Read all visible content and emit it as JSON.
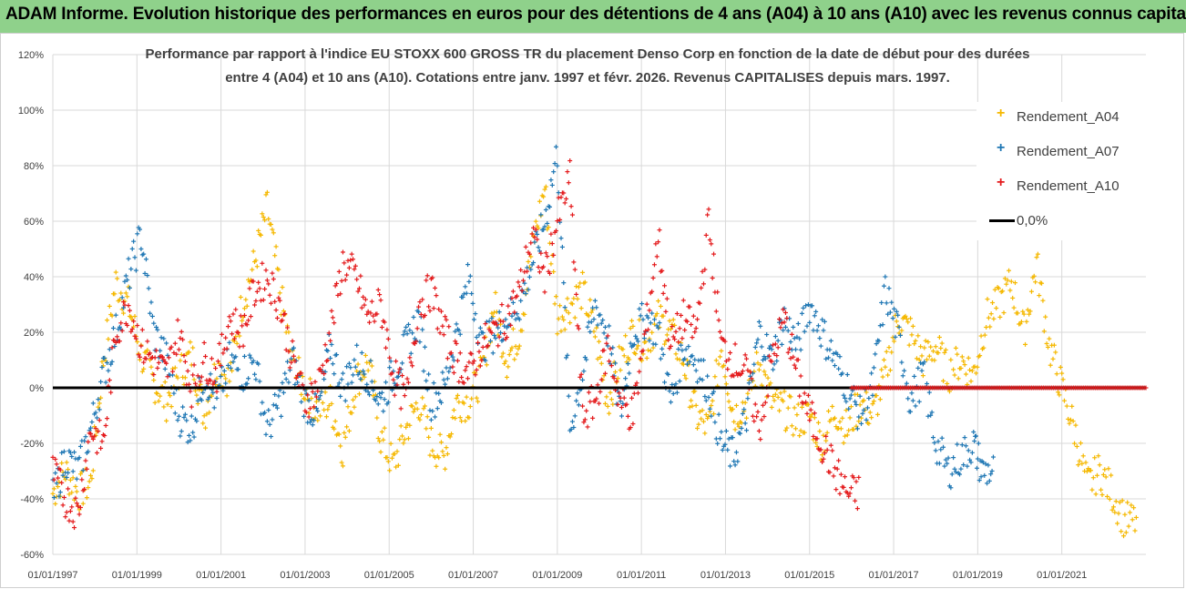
{
  "banner": {
    "title": "ADAM Informe. Evolution historique des performances en euros pour des détentions de 4 ans (A04) à 10 ans (A10) avec les revenus connus capitalisés"
  },
  "colors": {
    "banner_bg": "#8fd18b",
    "A04": "#f5b800",
    "A07": "#1f77b4",
    "A10": "#e41a1c",
    "zero": "#000000"
  },
  "chart_data": {
    "type": "scatter",
    "title_line1": "Performance par rapport à l'indice EU STOXX 600 GROSS TR  du placement Denso Corp en fonction de la date de début pour des durées",
    "title_line2": "entre 4 (A04) et 10 ans (A10). Cotations entre janv. 1997 et févr. 2026. Revenus CAPITALISES depuis mars. 1997.",
    "xlabel": "",
    "ylabel": "",
    "ylim": [
      -60,
      120
    ],
    "xlim": [
      1997.0,
      2023.0
    ],
    "y_ticks": [
      "-60%",
      "-40%",
      "-20%",
      "0%",
      "20%",
      "40%",
      "60%",
      "80%",
      "100%",
      "120%"
    ],
    "y_tick_values": [
      -60,
      -40,
      -20,
      0,
      20,
      40,
      60,
      80,
      100,
      120
    ],
    "x_ticks": [
      "01/01/1997",
      "01/01/1999",
      "01/01/2001",
      "01/01/2003",
      "01/01/2005",
      "01/01/2007",
      "01/01/2009",
      "01/01/2011",
      "01/01/2013",
      "01/01/2015",
      "01/01/2017",
      "01/01/2019",
      "01/01/2021"
    ],
    "x_tick_values": [
      1997,
      1999,
      2001,
      2003,
      2005,
      2007,
      2009,
      2011,
      2013,
      2015,
      2017,
      2019,
      2021
    ],
    "legend": [
      "Rendement_A04",
      "Rendement_A07",
      "Rendement_A10",
      "0,0%"
    ],
    "series": [
      {
        "name": "Rendement_A04",
        "color": "#f5b800",
        "x": [
          1997.0,
          1997.3,
          1997.6,
          1997.9,
          1998.2,
          1998.5,
          1998.8,
          1999.1,
          1999.4,
          1999.7,
          2000.0,
          2000.3,
          2000.6,
          2000.9,
          2001.2,
          2001.5,
          2001.8,
          2002.1,
          2002.4,
          2002.7,
          2003.0,
          2003.3,
          2003.6,
          2003.9,
          2004.2,
          2004.5,
          2004.8,
          2005.1,
          2005.4,
          2005.7,
          2006.0,
          2006.3,
          2006.6,
          2006.9,
          2007.2,
          2007.5,
          2007.8,
          2008.1,
          2008.4,
          2008.7,
          2009.0,
          2009.3,
          2009.6,
          2009.9,
          2010.2,
          2010.5,
          2010.8,
          2011.1,
          2011.4,
          2011.7,
          2012.0,
          2012.3,
          2012.6,
          2012.9,
          2013.2,
          2013.5,
          2013.8,
          2014.1,
          2014.4,
          2014.7,
          2015.0,
          2015.3,
          2015.6,
          2015.9,
          2016.2,
          2016.5,
          2016.8,
          2017.1,
          2017.4,
          2017.7,
          2018.0,
          2018.3,
          2018.6,
          2018.9,
          2019.2,
          2019.5,
          2019.8,
          2020.1,
          2020.4,
          2020.7,
          2021.0,
          2021.3,
          2021.6,
          2021.9,
          2022.2,
          2022.5
        ],
        "y": [
          -38,
          -30,
          -38,
          -34,
          10,
          38,
          30,
          12,
          2,
          -5,
          5,
          12,
          -10,
          8,
          3,
          30,
          45,
          65,
          35,
          8,
          0,
          -8,
          -5,
          -22,
          2,
          10,
          -18,
          -28,
          -15,
          -5,
          -20,
          -25,
          -5,
          -5,
          5,
          30,
          10,
          20,
          50,
          72,
          25,
          30,
          35,
          20,
          -5,
          10,
          20,
          15,
          25,
          20,
          10,
          -10,
          -15,
          15,
          -10,
          -5,
          10,
          -5,
          -8,
          -12,
          -10,
          -20,
          -8,
          -15,
          -5,
          -10,
          5,
          25,
          20,
          10,
          15,
          5,
          10,
          5,
          25,
          30,
          38,
          20,
          45,
          15,
          0,
          -15,
          -35,
          -30,
          -38,
          -48
        ]
      },
      {
        "name": "Rendement_A07",
        "color": "#1f77b4",
        "x": [
          1997.0,
          1997.3,
          1997.6,
          1997.9,
          1998.2,
          1998.5,
          1998.8,
          1999.1,
          1999.4,
          1999.7,
          2000.0,
          2000.3,
          2000.6,
          2000.9,
          2001.2,
          2001.5,
          2001.8,
          2002.1,
          2002.4,
          2002.7,
          2003.0,
          2003.3,
          2003.6,
          2003.9,
          2004.2,
          2004.5,
          2004.8,
          2005.1,
          2005.4,
          2005.7,
          2006.0,
          2006.3,
          2006.6,
          2006.9,
          2007.2,
          2007.5,
          2007.8,
          2008.1,
          2008.4,
          2008.7,
          2009.0,
          2009.3,
          2009.6,
          2009.9,
          2010.2,
          2010.5,
          2010.8,
          2011.1,
          2011.4,
          2011.7,
          2012.0,
          2012.3,
          2012.6,
          2012.9,
          2013.2,
          2013.5,
          2013.8,
          2014.1,
          2014.4,
          2014.7,
          2015.0,
          2015.3,
          2015.6,
          2015.9,
          2016.2,
          2016.5,
          2016.8,
          2017.1,
          2017.4,
          2017.7,
          2018.0,
          2018.3,
          2018.6,
          2018.9,
          2019.1
        ],
        "y": [
          -40,
          -25,
          -30,
          -15,
          5,
          20,
          40,
          55,
          20,
          10,
          -10,
          -15,
          5,
          -5,
          10,
          5,
          10,
          -15,
          -5,
          10,
          -5,
          -10,
          15,
          0,
          10,
          5,
          -5,
          5,
          15,
          25,
          -5,
          0,
          20,
          40,
          15,
          20,
          25,
          30,
          45,
          60,
          85,
          -15,
          5,
          30,
          20,
          -10,
          20,
          25,
          20,
          -5,
          15,
          10,
          0,
          -20,
          -25,
          -10,
          20,
          10,
          25,
          15,
          30,
          20,
          10,
          0,
          -10,
          0,
          35,
          20,
          -5,
          5,
          -20,
          -30,
          -25,
          -20,
          -30
        ]
      },
      {
        "name": "Rendement_A10",
        "color": "#e41a1c",
        "x": [
          1997.0,
          1997.3,
          1997.6,
          1997.9,
          1998.2,
          1998.5,
          1998.8,
          1999.1,
          1999.4,
          1999.7,
          2000.0,
          2000.3,
          2000.6,
          2000.9,
          2001.2,
          2001.5,
          2001.8,
          2002.1,
          2002.4,
          2002.7,
          2003.0,
          2003.3,
          2003.6,
          2003.9,
          2004.2,
          2004.5,
          2004.8,
          2005.1,
          2005.4,
          2005.7,
          2006.0,
          2006.3,
          2006.6,
          2006.9,
          2007.2,
          2007.5,
          2007.8,
          2008.1,
          2008.4,
          2008.7,
          2009.0,
          2009.3,
          2009.6,
          2009.9,
          2010.2,
          2010.5,
          2010.8,
          2011.1,
          2011.4,
          2011.7,
          2012.0,
          2012.3,
          2012.6,
          2012.9,
          2013.2,
          2013.5,
          2013.8,
          2014.1,
          2014.4,
          2014.7,
          2015.0,
          2015.3,
          2015.6,
          2015.9
        ],
        "y": [
          -30,
          -40,
          -45,
          -15,
          -20,
          20,
          30,
          15,
          10,
          5,
          20,
          0,
          10,
          5,
          25,
          20,
          35,
          40,
          30,
          10,
          -5,
          0,
          20,
          45,
          40,
          25,
          30,
          5,
          -5,
          30,
          35,
          20,
          10,
          5,
          15,
          20,
          25,
          35,
          55,
          40,
          60,
          75,
          -10,
          -5,
          15,
          -5,
          -10,
          20,
          55,
          15,
          25,
          20,
          60,
          15,
          10,
          5,
          -15,
          10,
          25,
          5,
          -10,
          -20,
          -30,
          -38
        ]
      },
      {
        "name": "Rendement_A10 (0%)",
        "color": "#e41a1c",
        "x_range": [
          2016.0,
          2023.0
        ],
        "y": 0
      }
    ]
  }
}
